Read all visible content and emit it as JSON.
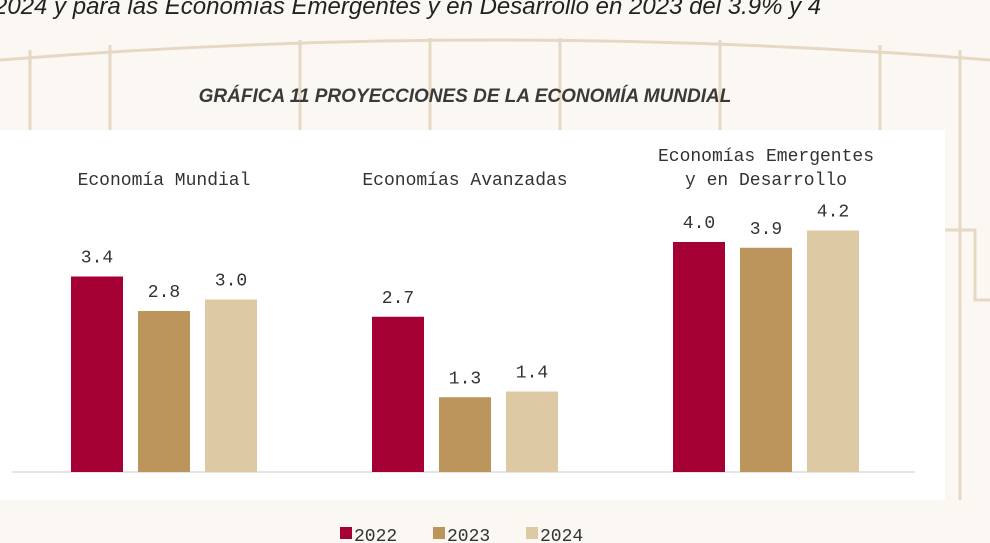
{
  "document": {
    "lead_text": "2024 y para las Economías Emergentes y en Desarrollo en 2023 del 3.9% y 4"
  },
  "chart_data": {
    "type": "bar",
    "title": "GRÁFICA 11 PROYECCIONES DE LA ECONOMÍA MUNDIAL",
    "categories": [
      [
        "Economía Mundial"
      ],
      [
        "Economías Avanzadas"
      ],
      [
        "Economías Emergentes",
        "y en Desarrollo"
      ]
    ],
    "series": [
      {
        "name": "2022",
        "color": "#a50034",
        "values": [
          3.4,
          2.7,
          4.0
        ],
        "value_labels": [
          "3.4",
          "2.7",
          "4.0"
        ]
      },
      {
        "name": "2023",
        "color": "#bc955c",
        "values": [
          2.8,
          1.3,
          3.9
        ],
        "value_labels": [
          "2.8",
          "1.3",
          "3.9"
        ]
      },
      {
        "name": "2024",
        "color": "#ddc9a3",
        "values": [
          3.0,
          1.4,
          4.2
        ],
        "value_labels": [
          "3.0",
          "1.4",
          "4.2"
        ]
      }
    ]
  }
}
